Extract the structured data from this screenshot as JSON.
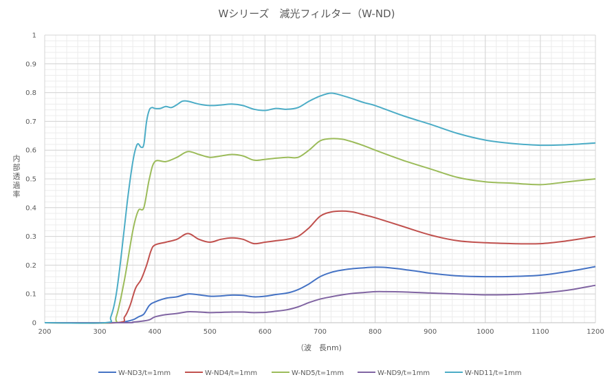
{
  "chart_data": {
    "type": "line",
    "title": "Wシリーズ　減光フィルター（W-ND)",
    "xlabel": "（波　長nm)",
    "ylabel": "内部透過率",
    "xlim": [
      200,
      1200
    ],
    "ylim": [
      0,
      1
    ],
    "grid": true,
    "legend_position": "bottom",
    "xticks": [
      "200",
      "300",
      "400",
      "500",
      "600",
      "700",
      "800",
      "900",
      "1000",
      "1100",
      "1200"
    ],
    "yticks": [
      "0",
      "0.1",
      "0.2",
      "0.3",
      "0.4",
      "0.5",
      "0.6",
      "0.7",
      "0.8",
      "0.9",
      "1"
    ],
    "series": [
      {
        "name": "W-ND3/t=1mm",
        "color": "#4472c4",
        "x": [
          200,
          320,
          340,
          360,
          370,
          380,
          390,
          400,
          420,
          440,
          460,
          480,
          500,
          520,
          540,
          560,
          580,
          600,
          620,
          640,
          660,
          680,
          700,
          720,
          740,
          760,
          780,
          800,
          820,
          840,
          860,
          880,
          900,
          950,
          1000,
          1050,
          1100,
          1150,
          1200
        ],
        "y": [
          0,
          0,
          0.002,
          0.01,
          0.02,
          0.03,
          0.06,
          0.072,
          0.085,
          0.09,
          0.1,
          0.097,
          0.092,
          0.093,
          0.096,
          0.095,
          0.09,
          0.092,
          0.098,
          0.103,
          0.115,
          0.135,
          0.16,
          0.175,
          0.183,
          0.188,
          0.191,
          0.193,
          0.192,
          0.188,
          0.183,
          0.178,
          0.172,
          0.163,
          0.16,
          0.161,
          0.165,
          0.178,
          0.195
        ]
      },
      {
        "name": "W-ND4/t=1mm",
        "color": "#c0504d",
        "x": [
          200,
          330,
          345,
          355,
          365,
          375,
          385,
          393,
          400,
          420,
          440,
          460,
          480,
          500,
          520,
          540,
          560,
          580,
          600,
          620,
          640,
          660,
          680,
          700,
          720,
          740,
          760,
          780,
          800,
          850,
          900,
          950,
          1000,
          1050,
          1100,
          1150,
          1200
        ],
        "y": [
          0,
          0,
          0.02,
          0.06,
          0.12,
          0.15,
          0.2,
          0.25,
          0.27,
          0.28,
          0.29,
          0.31,
          0.29,
          0.28,
          0.29,
          0.295,
          0.29,
          0.275,
          0.28,
          0.285,
          0.29,
          0.3,
          0.33,
          0.37,
          0.385,
          0.388,
          0.385,
          0.375,
          0.365,
          0.335,
          0.305,
          0.285,
          0.278,
          0.275,
          0.275,
          0.285,
          0.3
        ]
      },
      {
        "name": "W-ND5/t=1mm",
        "color": "#9bbb59",
        "x": [
          200,
          320,
          330,
          345,
          360,
          370,
          380,
          390,
          400,
          420,
          440,
          460,
          480,
          500,
          520,
          540,
          560,
          580,
          600,
          620,
          640,
          660,
          680,
          700,
          720,
          740,
          760,
          780,
          800,
          850,
          900,
          950,
          1000,
          1050,
          1100,
          1150,
          1200
        ],
        "y": [
          0,
          0,
          0.02,
          0.15,
          0.32,
          0.39,
          0.4,
          0.5,
          0.56,
          0.56,
          0.575,
          0.595,
          0.585,
          0.575,
          0.58,
          0.585,
          0.58,
          0.565,
          0.568,
          0.572,
          0.575,
          0.575,
          0.6,
          0.632,
          0.64,
          0.638,
          0.628,
          0.615,
          0.6,
          0.565,
          0.535,
          0.505,
          0.49,
          0.485,
          0.48,
          0.49,
          0.5
        ]
      },
      {
        "name": "W-ND9/t=1mm",
        "color": "#8064a2",
        "x": [
          200,
          345,
          360,
          375,
          390,
          400,
          420,
          440,
          460,
          480,
          500,
          520,
          540,
          560,
          580,
          600,
          620,
          640,
          660,
          680,
          700,
          720,
          740,
          760,
          780,
          800,
          820,
          850,
          900,
          950,
          1000,
          1050,
          1100,
          1150,
          1200
        ],
        "y": [
          0,
          0,
          0.002,
          0.005,
          0.01,
          0.02,
          0.028,
          0.032,
          0.038,
          0.037,
          0.035,
          0.036,
          0.037,
          0.037,
          0.035,
          0.036,
          0.04,
          0.045,
          0.055,
          0.07,
          0.082,
          0.09,
          0.097,
          0.102,
          0.105,
          0.108,
          0.108,
          0.107,
          0.103,
          0.1,
          0.097,
          0.098,
          0.103,
          0.113,
          0.13
        ]
      },
      {
        "name": "W-ND11/t=1mm",
        "color": "#4bacc6",
        "x": [
          200,
          310,
          320,
          330,
          340,
          350,
          360,
          368,
          375,
          380,
          385,
          390,
          395,
          400,
          410,
          420,
          430,
          440,
          450,
          460,
          480,
          500,
          520,
          540,
          560,
          580,
          600,
          620,
          640,
          660,
          680,
          700,
          720,
          740,
          760,
          780,
          800,
          850,
          900,
          950,
          1000,
          1050,
          1100,
          1150,
          1200
        ],
        "y": [
          0,
          0,
          0.02,
          0.1,
          0.25,
          0.42,
          0.56,
          0.62,
          0.61,
          0.62,
          0.7,
          0.74,
          0.748,
          0.745,
          0.745,
          0.752,
          0.748,
          0.758,
          0.77,
          0.77,
          0.76,
          0.755,
          0.757,
          0.76,
          0.755,
          0.742,
          0.738,
          0.745,
          0.742,
          0.748,
          0.77,
          0.788,
          0.798,
          0.79,
          0.778,
          0.765,
          0.755,
          0.72,
          0.69,
          0.658,
          0.635,
          0.623,
          0.617,
          0.619,
          0.625
        ]
      }
    ]
  }
}
